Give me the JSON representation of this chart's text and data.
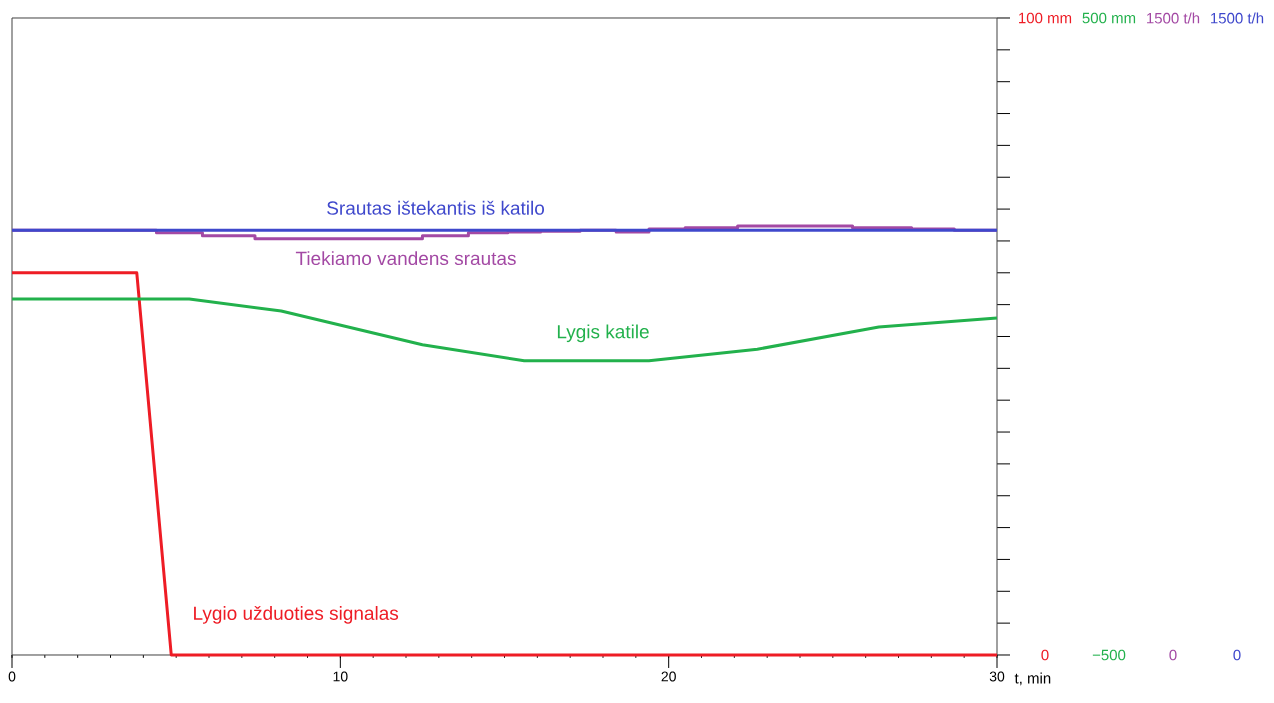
{
  "chart_data": {
    "type": "line",
    "xlabel": "t, min",
    "xlim": [
      0,
      30
    ],
    "xticks": [
      0,
      10,
      20,
      30
    ],
    "ylim": [
      0,
      100
    ],
    "yticks": [
      0,
      {
        "value": 100,
        "label": "100 mm"
      }
    ],
    "y2lim": [
      0,
      1500
    ],
    "y2ticks": [
      0,
      {
        "value": 1500,
        "label": "1500 t/h"
      }
    ],
    "y3lim": [
      -500,
      500
    ],
    "y3ticks": [
      {
        "value": -500,
        "label": "−500"
      },
      {
        "value": 500,
        "label": "500 mm"
      }
    ],
    "annotations": [
      "1500 t/h",
      "0"
    ],
    "series": [
      {
        "name": "Lygio užduoties signalas",
        "color": "#ee1c25",
        "axis": "y",
        "x": [
          0,
          3.8,
          4.85,
          30
        ],
        "values": [
          60,
          60,
          0,
          0
        ]
      },
      {
        "name": "Lygis katile",
        "color": "#22b14c",
        "axis": "y3",
        "x": [
          0,
          5.4,
          8.2,
          12.5,
          15.6,
          19.4,
          22.7,
          26.4,
          30
        ],
        "values": [
          59,
          59,
          40,
          -13,
          -38,
          -38,
          -20,
          15,
          29
        ]
      },
      {
        "name": "Tiekiamo vandens srautas",
        "color": "#a349a4",
        "axis": "y2",
        "type": "step",
        "x": [
          0,
          4.4,
          5.8,
          7.4,
          12.5,
          13.9,
          15.1,
          16.1,
          17.3,
          18.4,
          19.4,
          20.5,
          22.1,
          25.6,
          27.4,
          28.7,
          30
        ],
        "values": [
          1000,
          994,
          987,
          980,
          987,
          994,
          996,
          998,
          1000,
          996,
          1003,
          1006,
          1010,
          1006,
          1003,
          1000,
          1000
        ]
      },
      {
        "name": "Srautas ištekantis iš katilo",
        "color": "#3f48cc",
        "axis": "y2",
        "x": [
          0,
          30
        ],
        "values": [
          1000,
          1000
        ]
      }
    ]
  }
}
